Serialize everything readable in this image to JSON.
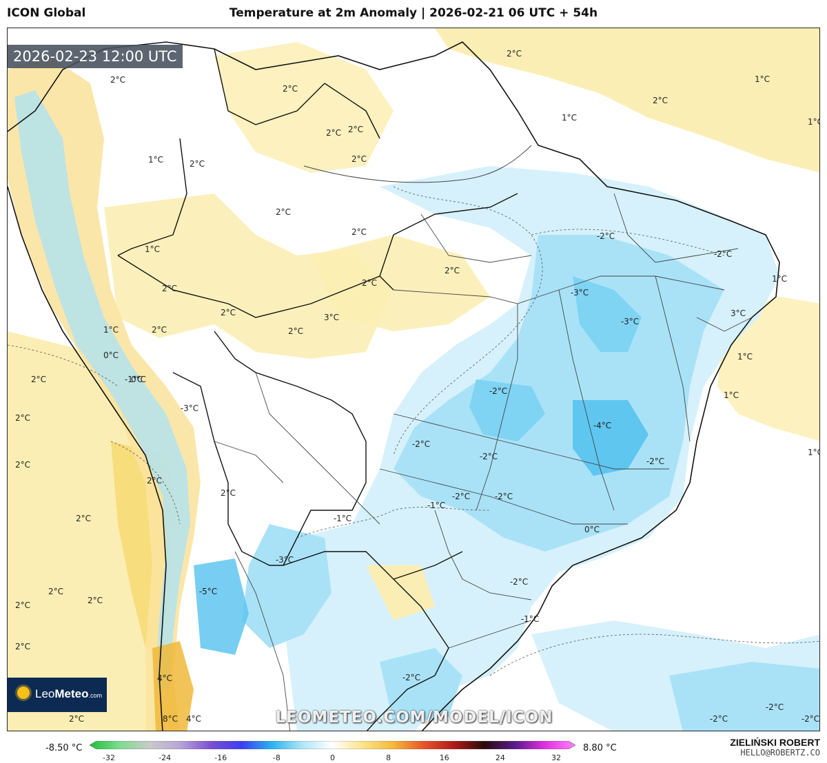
{
  "header": {
    "model_name": "ICON Global",
    "title": "Temperature at 2m Anomaly | 2026-02-21 06 UTC + 54h"
  },
  "map": {
    "valid_time": "2026-02-23 12:00 UTC",
    "watermark": "LEOMETEO.COM/MODEL/ICON",
    "logo": {
      "brand_light": "Leo",
      "brand_bold": "Meteo",
      "suffix": ".com"
    },
    "contour_labels": [
      "2°C",
      "2°C",
      "2°C",
      "1°C",
      "2°C",
      "1°C",
      "2°C",
      "1°C",
      "1°C",
      "2°C",
      "2°C",
      "2°C",
      "2°C",
      "1°C",
      "2°C",
      "2°C",
      "2°C",
      "2°C",
      "2°C",
      "-2°C",
      "-2°C",
      "-3°C",
      "1°C",
      "-3°C",
      "3°C",
      "1°C",
      "1°C",
      "0°C",
      "1°C",
      "-1°C",
      "0°C",
      "-3°C",
      "2°C",
      "2°C",
      "3°C",
      "-4°C",
      "-2°C",
      "-2°C",
      "2°C",
      "2°C",
      "-2°C",
      "-2°C",
      "-2°C",
      "1°C",
      "2°C",
      "-1°C",
      "-2°C",
      "0°C",
      "-3°C",
      "-1°C",
      "2°C",
      "2°C",
      "2°C",
      "-5°C",
      "-2°C",
      "2°C",
      "-1°C",
      "2°C",
      "-2°C",
      "2°C",
      "4°C",
      "8°C",
      "4°C",
      "2°C",
      "-2°C",
      "-2°C",
      "-2°C",
      "2°C"
    ],
    "colors": {
      "land_border": "#111111",
      "state_border": "#444444",
      "contour": "#555555",
      "cold_light": "#d6f1fb",
      "cold_mid": "#a9e2f7",
      "cold_deep": "#5fc6f0",
      "warm_light": "#fbeeb4",
      "warm_mid": "#f7dd7c",
      "warm_deep": "#f0b93a"
    }
  },
  "legend": {
    "min_label": "-8.50 °C",
    "max_label": "8.80 °C",
    "ticks": [
      "-32",
      "-24",
      "-16",
      "-8",
      "0",
      "8",
      "16",
      "24",
      "32"
    ],
    "gradient": [
      "#1fbf3a",
      "#7fdc8e",
      "#c9c9c9",
      "#b8a3d8",
      "#7a4fd0",
      "#3d3df0",
      "#2ab3f0",
      "#aee6f7",
      "#ffffff",
      "#fbe38a",
      "#f5b93a",
      "#e8542a",
      "#b01a1a",
      "#2a0a0a",
      "#5a1a8a",
      "#e030e0",
      "#ff80ff"
    ]
  },
  "author": {
    "name": "ZIELIŃSKI ROBERT",
    "email": "HELLO@ROBERTZ.CO"
  }
}
